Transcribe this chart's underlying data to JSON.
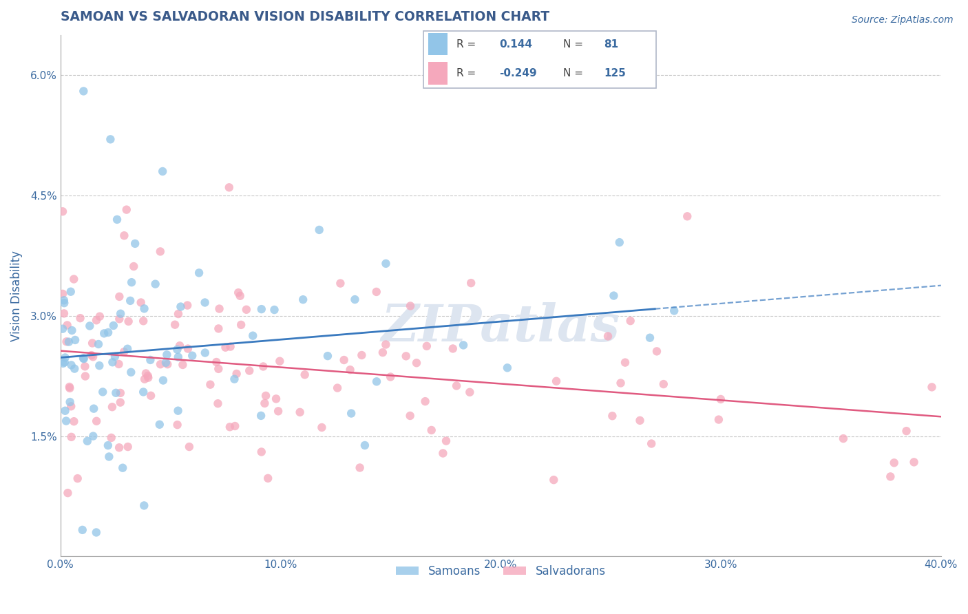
{
  "title": "SAMOAN VS SALVADORAN VISION DISABILITY CORRELATION CHART",
  "source": "Source: ZipAtlas.com",
  "xlabel": "",
  "ylabel": "Vision Disability",
  "xlim": [
    0.0,
    0.4
  ],
  "ylim": [
    0.0,
    0.065
  ],
  "xticks": [
    0.0,
    0.1,
    0.2,
    0.3,
    0.4
  ],
  "xtick_labels": [
    "0.0%",
    "10.0%",
    "20.0%",
    "30.0%",
    "40.0%"
  ],
  "yticks": [
    0.0,
    0.015,
    0.03,
    0.045,
    0.06
  ],
  "ytick_labels": [
    "",
    "1.5%",
    "3.0%",
    "4.5%",
    "6.0%"
  ],
  "samoans_R": 0.144,
  "samoans_N": 81,
  "salvadorans_R": -0.249,
  "salvadorans_N": 125,
  "samoan_color": "#92c5e8",
  "salvadoran_color": "#f5a8bc",
  "trend_samoan_solid_color": "#3a7abf",
  "trend_salvadoran_solid_color": "#e05a80",
  "background_color": "#ffffff",
  "grid_color": "#c8c8c8",
  "title_color": "#3a5a8a",
  "axis_color": "#3a6aa0",
  "watermark": "ZIPatlas",
  "watermark_color": "#dde5f0",
  "legend_text_color": "#3a6aa0",
  "legend_label_color": "#444444"
}
